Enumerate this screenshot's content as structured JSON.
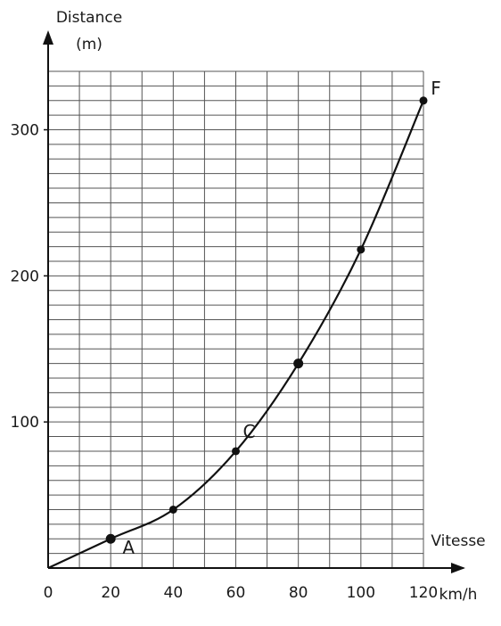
{
  "chart_data": {
    "type": "line",
    "title": "",
    "ylabel_line1": "Distance",
    "ylabel_line2": "(m)",
    "xlabel": "Vitesse",
    "xunit": "km/h",
    "xlim": [
      0,
      120
    ],
    "ylim": [
      0,
      340
    ],
    "grid": true,
    "x_ticks": [
      "0",
      "20",
      "40",
      "60",
      "80",
      "100",
      "120"
    ],
    "y_ticks": [
      "100",
      "200",
      "300"
    ],
    "series": [
      {
        "x": [
          0,
          20,
          40,
          60,
          80,
          100,
          120
        ],
        "y": [
          0,
          20,
          40,
          80,
          140,
          218,
          320
        ]
      }
    ],
    "annotations": [
      {
        "text": "A",
        "x": 20,
        "y": 20
      },
      {
        "text": "C",
        "x": 62,
        "y": 88
      },
      {
        "text": "F",
        "x": 120,
        "y": 320
      }
    ]
  }
}
